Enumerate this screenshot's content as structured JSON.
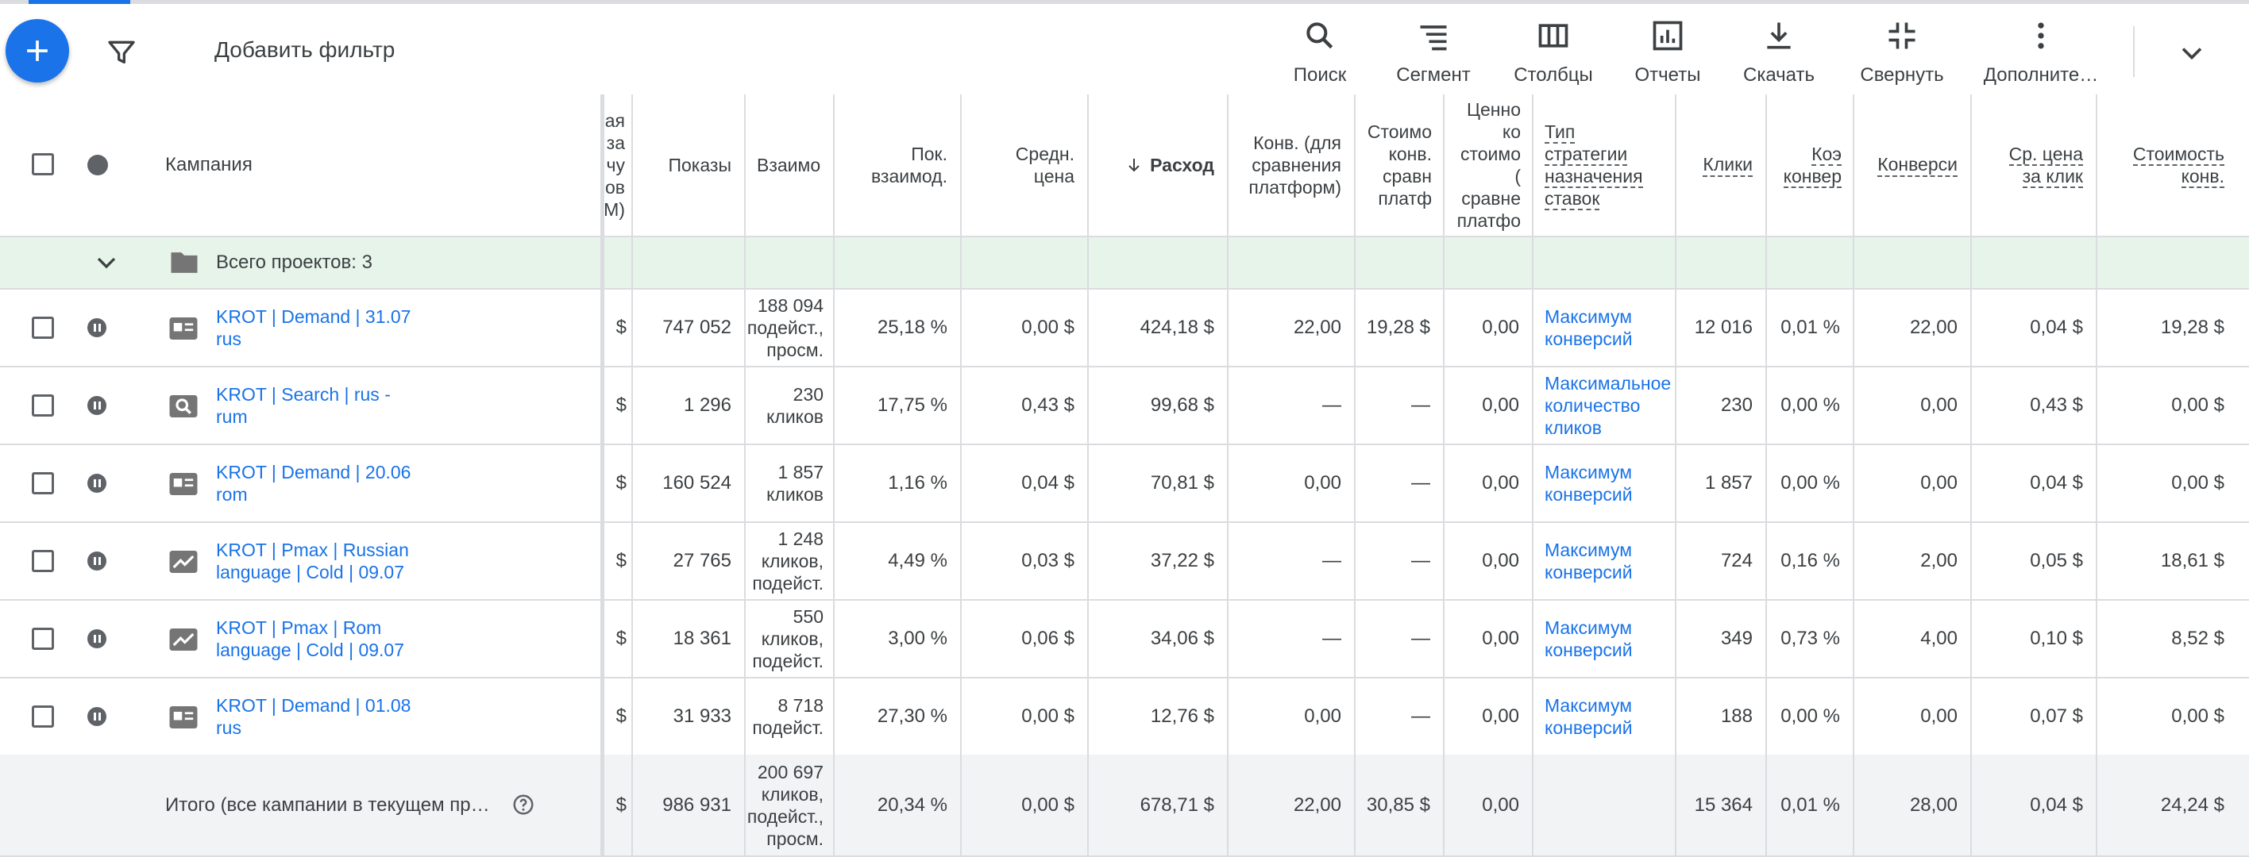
{
  "toolbar": {
    "add_filter": "Добавить фильтр",
    "buttons": {
      "search": "Поиск",
      "segment": "Сегмент",
      "columns": "Столбцы",
      "reports": "Отчеты",
      "download": "Скачать",
      "collapse": "Свернуть",
      "more": "Дополните…"
    }
  },
  "header": {
    "campaign": "Кампания",
    "cut_col": [
      "ая",
      "за",
      "чу",
      "ов",
      "М)"
    ],
    "impressions": "Показы",
    "interactions": "Взаимо",
    "interaction_rate": [
      "Пок.",
      "взаимод."
    ],
    "avg_cost": [
      "Средн.",
      "цена"
    ],
    "cost": "Расход",
    "conv_platform": [
      "Конв. (для",
      "сравнения",
      "платформ)"
    ],
    "cost_conv_platform": [
      "Стоимо",
      "конв.",
      "сравн",
      "платф"
    ],
    "value_cost_platform": [
      "Ценно",
      "ко",
      "стоимо",
      "(",
      "сравне",
      "платфо"
    ],
    "bid_strategy": [
      "Тип",
      "стратегии",
      "назначения",
      "ставок"
    ],
    "clicks": "Клики",
    "conv_rate": [
      "Коэ",
      "конвер"
    ],
    "conversions": "Конверси",
    "avg_cpc": [
      "Ср. цена",
      "за клик"
    ],
    "cost_per_conv": [
      "Стоимость",
      "конв."
    ]
  },
  "group": {
    "label": "Всего проектов: 3"
  },
  "rows": [
    {
      "name": [
        "KROT | Demand | 31.07",
        "rus"
      ],
      "icon": "display-icon",
      "cut": "$",
      "impressions": "747 052",
      "interactions": [
        "188 094",
        "подейст.,",
        "просм."
      ],
      "int_rate": "25,18 %",
      "avg_cost": "0,00 $",
      "cost": "424,18 $",
      "conv_platform": "22,00",
      "cost_conv": "19,28 $",
      "value_cost": "0,00",
      "strategy": [
        "Максимум",
        "конверсий"
      ],
      "clicks": "12 016",
      "conv_rate": "0,01 %",
      "conversions": "22,00",
      "avg_cpc": "0,04 $",
      "cost_per_conv": "19,28 $"
    },
    {
      "name": [
        "KROT | Search | rus -",
        "rum"
      ],
      "icon": "search-campaign-icon",
      "cut": "$",
      "impressions": "1 296",
      "interactions": [
        "230",
        "кликов"
      ],
      "int_rate": "17,75 %",
      "avg_cost": "0,43 $",
      "cost": "99,68 $",
      "conv_platform": "—",
      "cost_conv": "—",
      "value_cost": "0,00",
      "strategy": [
        "Максимальное",
        "количество",
        "кликов"
      ],
      "clicks": "230",
      "conv_rate": "0,00 %",
      "conversions": "0,00",
      "avg_cpc": "0,43 $",
      "cost_per_conv": "0,00 $"
    },
    {
      "name": [
        "KROT | Demand | 20.06",
        "rom"
      ],
      "icon": "display-icon",
      "cut": "$",
      "impressions": "160 524",
      "interactions": [
        "1 857",
        "кликов"
      ],
      "int_rate": "1,16 %",
      "avg_cost": "0,04 $",
      "cost": "70,81 $",
      "conv_platform": "0,00",
      "cost_conv": "—",
      "value_cost": "0,00",
      "strategy": [
        "Максимум",
        "конверсий"
      ],
      "clicks": "1 857",
      "conv_rate": "0,00 %",
      "conversions": "0,00",
      "avg_cpc": "0,04 $",
      "cost_per_conv": "0,00 $"
    },
    {
      "name": [
        "KROT | Pmax | Russian",
        "language | Cold | 09.07"
      ],
      "icon": "performance-max-icon",
      "cut": "$",
      "impressions": "27 765",
      "interactions": [
        "1 248",
        "кликов,",
        "подейст."
      ],
      "int_rate": "4,49 %",
      "avg_cost": "0,03 $",
      "cost": "37,22 $",
      "conv_platform": "—",
      "cost_conv": "—",
      "value_cost": "0,00",
      "strategy": [
        "Максимум",
        "конверсий"
      ],
      "clicks": "724",
      "conv_rate": "0,16 %",
      "conversions": "2,00",
      "avg_cpc": "0,05 $",
      "cost_per_conv": "18,61 $"
    },
    {
      "name": [
        "KROT | Pmax | Rom",
        "language | Cold | 09.07"
      ],
      "icon": "performance-max-icon",
      "cut": "$",
      "impressions": "18 361",
      "interactions": [
        "550",
        "кликов,",
        "подейст."
      ],
      "int_rate": "3,00 %",
      "avg_cost": "0,06 $",
      "cost": "34,06 $",
      "conv_platform": "—",
      "cost_conv": "—",
      "value_cost": "0,00",
      "strategy": [
        "Максимум",
        "конверсий"
      ],
      "clicks": "349",
      "conv_rate": "0,73 %",
      "conversions": "4,00",
      "avg_cpc": "0,10 $",
      "cost_per_conv": "8,52 $"
    },
    {
      "name": [
        "KROT | Demand | 01.08",
        "rus"
      ],
      "icon": "display-icon",
      "cut": "$",
      "impressions": "31 933",
      "interactions": [
        "8 718",
        "подейст."
      ],
      "int_rate": "27,30 %",
      "avg_cost": "0,00 $",
      "cost": "12,76 $",
      "conv_platform": "0,00",
      "cost_conv": "—",
      "value_cost": "0,00",
      "strategy": [
        "Максимум",
        "конверсий"
      ],
      "clicks": "188",
      "conv_rate": "0,00 %",
      "conversions": "0,00",
      "avg_cpc": "0,07 $",
      "cost_per_conv": "0,00 $"
    }
  ],
  "total": {
    "label": "Итого (все кампании в текущем пр…",
    "cut": "$",
    "impressions": "986 931",
    "interactions": [
      "200 697",
      "кликов,",
      "подейст.,",
      "просм."
    ],
    "int_rate": "20,34 %",
    "avg_cost": "0,00 $",
    "cost": "678,71 $",
    "conv_platform": "22,00",
    "cost_conv": "30,85 $",
    "value_cost": "0,00",
    "clicks": "15 364",
    "conv_rate": "0,01 %",
    "conversions": "28,00",
    "avg_cpc": "0,04 $",
    "cost_per_conv": "24,24 $"
  },
  "colors": {
    "accent": "#1a73e8",
    "group_bg": "#e6f4ea",
    "total_bg": "#f1f3f4",
    "border": "#dadce0"
  }
}
